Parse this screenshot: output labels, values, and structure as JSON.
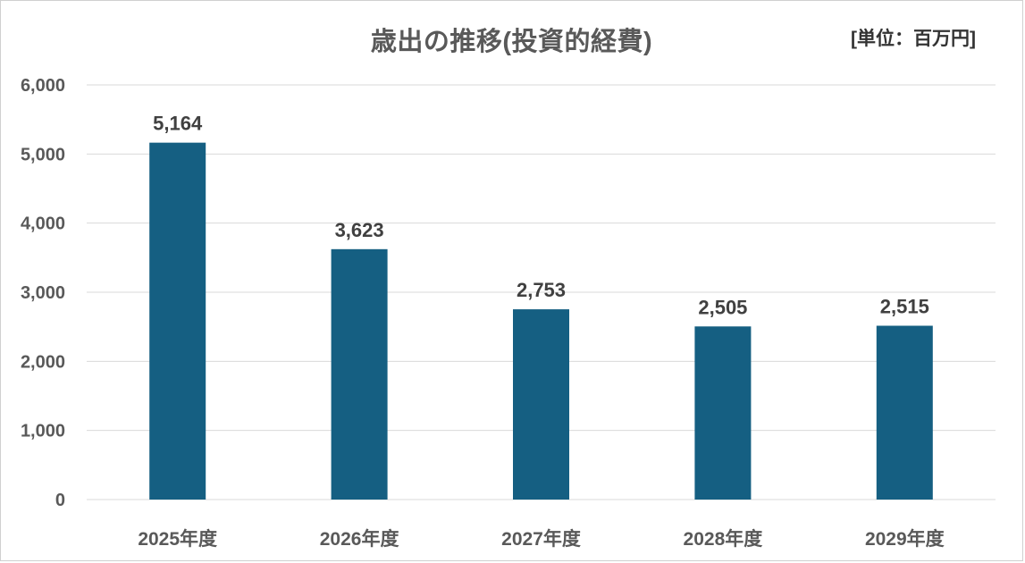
{
  "chart_data": {
    "type": "bar",
    "title": "歳出の推移(投資的経費)",
    "unit": "[単位：百万円]",
    "categories": [
      "2025年度",
      "2026年度",
      "2027年度",
      "2028年度",
      "2029年度"
    ],
    "values": [
      5164,
      3623,
      2753,
      2505,
      2515
    ],
    "data_labels": [
      "5,164",
      "3,623",
      "2,753",
      "2,505",
      "2,515"
    ],
    "y_ticks": [
      0,
      1000,
      2000,
      3000,
      4000,
      5000,
      6000
    ],
    "y_tick_labels": [
      "0",
      "1,000",
      "2,000",
      "3,000",
      "4,000",
      "5,000",
      "6,000"
    ],
    "ylim": [
      0,
      6000
    ],
    "xlabel": "",
    "ylabel": "",
    "grid": true,
    "legend": "none",
    "bar_color": "#155f82",
    "grid_color": "#d9d9d9"
  }
}
